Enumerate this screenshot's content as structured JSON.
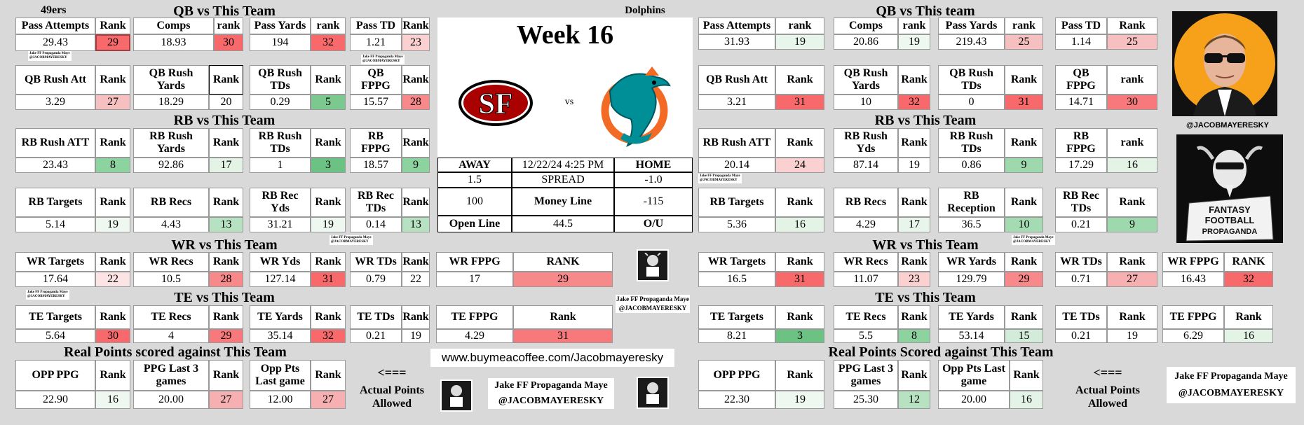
{
  "title": "Week 16",
  "away_team": "49ers",
  "home_team": "Dolphins",
  "vs": "vs",
  "game": {
    "away": "AWAY",
    "datetime": "12/22/24 4:25 PM",
    "home": "HOME",
    "spread_away": "1.5",
    "spread_label": "SPREAD",
    "spread_home": "-1.0",
    "ml_away": "100",
    "ml_label": "Money Line",
    "ml_home": "-115",
    "open_label": "Open Line",
    "open_total": "44.5",
    "ou_label": "O/U"
  },
  "headers": {
    "qb": "QB vs This Team",
    "qb2": "QB vs This team",
    "rb": "RB vs This Team",
    "wr": "WR vs This Team",
    "te": "TE vs This Team",
    "real": "Real Points scored against This Team",
    "real2": "Real Points Scored against This Team"
  },
  "arrow": "<===",
  "actual_points": "Actual Points Allowed",
  "url": "www.buymeacoffee.com/Jacobmayeresky",
  "brand": "Jake FF Propaganda Maye",
  "handle": "@JACOBMAYERESKY",
  "colors": {
    "red": "#f8696b",
    "lightred": "#fbd0d1",
    "green": "#8dd3a0",
    "lightgreen": "#e3f3e6",
    "rose": "#f6c0c1"
  },
  "left": {
    "pass_att": {
      "h": "Pass Attempts",
      "v": "29.43",
      "rh": "Rank",
      "r": "29"
    },
    "comps": {
      "h": "Comps",
      "v": "18.93",
      "rh": "rank",
      "r": "30"
    },
    "pass_yds": {
      "h": "Pass Yards",
      "v": "194",
      "rh": "rank",
      "r": "32"
    },
    "pass_td": {
      "h": "Pass TD",
      "v": "1.21",
      "rh": "Rank",
      "r": "23"
    },
    "qb_rush_att": {
      "h": "QB Rush Att",
      "v": "3.29",
      "rh": "Rank",
      "r": "27"
    },
    "qb_rush_yds": {
      "h": "QB Rush\nYards",
      "v": "18.29",
      "rh": "Rank",
      "r": "20"
    },
    "qb_rush_tds": {
      "h": "QB Rush\nTDs",
      "v": "0.29",
      "rh": "Rank",
      "r": "5"
    },
    "qb_fppg": {
      "h": "QB\nFPPG",
      "v": "15.57",
      "rh": "Rank",
      "r": "28"
    },
    "rb_rush_att": {
      "h": "RB Rush ATT",
      "v": "23.43",
      "rh": "Rank",
      "r": "8"
    },
    "rb_rush_yds": {
      "h": "RB Rush\nYards",
      "v": "92.86",
      "rh": "Rank",
      "r": "17"
    },
    "rb_rush_tds": {
      "h": "RB Rush\nTDs",
      "v": "1",
      "rh": "Rank",
      "r": "3"
    },
    "rb_fppg": {
      "h": "RB\nFPPG",
      "v": "18.57",
      "rh": "Rank",
      "r": "9"
    },
    "rb_targets": {
      "h": "RB Targets",
      "v": "5.14",
      "rh": "Rank",
      "r": "19"
    },
    "rb_recs": {
      "h": "RB Recs",
      "v": "4.43",
      "rh": "Rank",
      "r": "13"
    },
    "rb_rec_yds": {
      "h": "RB Rec\nYds",
      "v": "31.21",
      "rh": "Rank",
      "r": "19"
    },
    "rb_rec_tds": {
      "h": "RB Rec\nTDs",
      "v": "0.14",
      "rh": "Rank",
      "r": "13"
    },
    "wr_targets": {
      "h": "WR Targets",
      "v": "17.64",
      "rh": "Rank",
      "r": "22"
    },
    "wr_recs": {
      "h": "WR Recs",
      "v": "10.5",
      "rh": "Rank",
      "r": "28"
    },
    "wr_yds": {
      "h": "WR Yds",
      "v": "127.14",
      "rh": "Rank",
      "r": "31"
    },
    "wr_tds": {
      "h": "WR TDs",
      "v": "0.79",
      "rh": "Rank",
      "r": "22"
    },
    "wr_fppg": {
      "h": "WR FPPG",
      "v": "17",
      "rh": "RANK",
      "r": "29"
    },
    "te_targets": {
      "h": "TE Targets",
      "v": "5.64",
      "rh": "Rank",
      "r": "30"
    },
    "te_recs": {
      "h": "TE Recs",
      "v": "4",
      "rh": "Rank",
      "r": "29"
    },
    "te_yards": {
      "h": "TE Yards",
      "v": "35.14",
      "rh": "Rank",
      "r": "32"
    },
    "te_tds": {
      "h": "TE TDs",
      "v": "0.21",
      "rh": "Rank",
      "r": "19"
    },
    "te_fppg": {
      "h": "TE FPPG",
      "v": "4.29",
      "rh": "Rank",
      "r": "31"
    },
    "opp_ppg": {
      "h": "OPP PPG",
      "v": "22.90",
      "rh": "Rank",
      "r": "16"
    },
    "ppg_last3": {
      "h": "PPG Last 3\ngames",
      "v": "20.00",
      "rh": "Rank",
      "r": "27"
    },
    "opp_last": {
      "h": "Opp Pts\nLast game",
      "v": "12.00",
      "rh": "Rank",
      "r": "27"
    }
  },
  "right": {
    "pass_att": {
      "h": "Pass Attempts",
      "v": "31.93",
      "rh": "rank",
      "r": "19"
    },
    "comps": {
      "h": "Comps",
      "v": "20.86",
      "rh": "rank",
      "r": "19"
    },
    "pass_yds": {
      "h": "Pass Yards",
      "v": "219.43",
      "rh": "rank",
      "r": "25"
    },
    "pass_td": {
      "h": "Pass TD",
      "v": "1.14",
      "rh": "Rank",
      "r": "25"
    },
    "qb_rush_att": {
      "h": "QB Rush Att",
      "v": "3.21",
      "rh": "Rank",
      "r": "31"
    },
    "qb_rush_yds": {
      "h": "QB Rush\nYards",
      "v": "10",
      "rh": "Rank",
      "r": "32"
    },
    "qb_rush_tds": {
      "h": "QB Rush\nTDs",
      "v": "0",
      "rh": "Rank",
      "r": "31"
    },
    "qb_fppg": {
      "h": "QB\nFPPG",
      "v": "14.71",
      "rh": "rank",
      "r": "30"
    },
    "rb_rush_att": {
      "h": "RB Rush ATT",
      "v": "20.14",
      "rh": "Rank",
      "r": "24"
    },
    "rb_rush_yds": {
      "h": "RB Rush\nYds",
      "v": "87.14",
      "rh": "Rank",
      "r": "19"
    },
    "rb_rush_tds": {
      "h": "RB Rush\nTDs",
      "v": "0.86",
      "rh": "Rank",
      "r": "9"
    },
    "rb_fppg": {
      "h": "RB\nFPPG",
      "v": "17.29",
      "rh": "rank",
      "r": "16"
    },
    "rb_targets": {
      "h": "RB Targets",
      "v": "5.36",
      "rh": "Rank",
      "r": "16"
    },
    "rb_recs": {
      "h": "RB Recs",
      "v": "4.29",
      "rh": "Rank",
      "r": "17"
    },
    "rb_reception": {
      "h": "RB\nReception",
      "v": "36.5",
      "rh": "Rank",
      "r": "10"
    },
    "rb_rec_tds": {
      "h": "RB Rec\nTDs",
      "v": "0.21",
      "rh": "Rank",
      "r": "9"
    },
    "wr_targets": {
      "h": "WR Targets",
      "v": "16.5",
      "rh": "Rank",
      "r": "31"
    },
    "wr_recs": {
      "h": "WR Recs",
      "v": "11.07",
      "rh": "Rank",
      "r": "23"
    },
    "wr_yards": {
      "h": "WR Yards",
      "v": "129.79",
      "rh": "Rank",
      "r": "29"
    },
    "wr_tds": {
      "h": "WR TDs",
      "v": "0.71",
      "rh": "Rank",
      "r": "27"
    },
    "wr_fppg": {
      "h": "WR FPPG",
      "v": "16.43",
      "rh": "RANK",
      "r": "32"
    },
    "te_targets": {
      "h": "TE Targets",
      "v": "8.21",
      "rh": "Rank",
      "r": "3"
    },
    "te_recs": {
      "h": "TE Recs",
      "v": "5.5",
      "rh": "Rank",
      "r": "8"
    },
    "te_yards": {
      "h": "TE Yards",
      "v": "53.14",
      "rh": "Rank",
      "r": "15"
    },
    "te_tds": {
      "h": "TE TDs",
      "v": "0.21",
      "rh": "Rank",
      "r": "19"
    },
    "te_fppg": {
      "h": "TE FPPG",
      "v": "6.29",
      "rh": "Rank",
      "r": "16"
    },
    "opp_ppg": {
      "h": "OPP PPG",
      "v": "22.30",
      "rh": "Rank",
      "r": "19"
    },
    "ppg_last3": {
      "h": "PPG Last 3\ngames",
      "v": "25.30",
      "rh": "Rank",
      "r": "12"
    },
    "opp_last": {
      "h": "Opp Pts Last\ngame",
      "v": "20.00",
      "rh": "Rank",
      "r": "16"
    }
  }
}
